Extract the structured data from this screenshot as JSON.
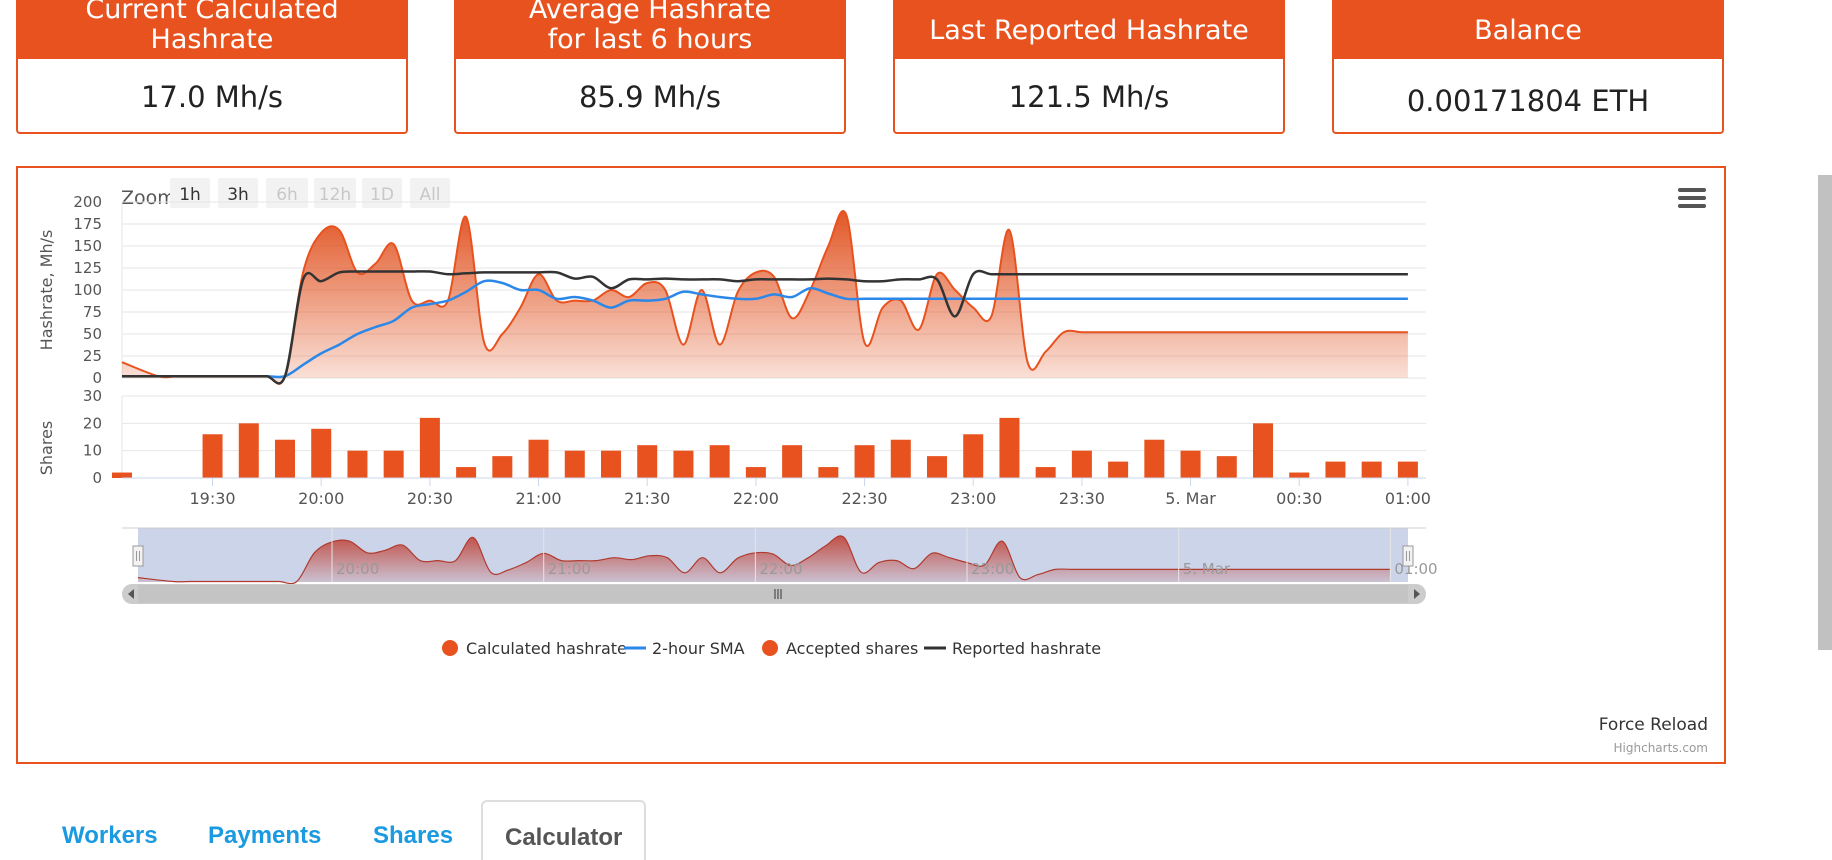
{
  "cards": [
    {
      "title_lines": [
        "Current Calculated",
        "Hashrate"
      ],
      "value": "17.0 Mh/s"
    },
    {
      "title_lines": [
        "Average Hashrate",
        "for last 6 hours"
      ],
      "value": "85.9 Mh/s"
    },
    {
      "title_lines": [
        "Last Reported Hashrate"
      ],
      "value": "121.5 Mh/s"
    },
    {
      "title_lines": [
        "Balance"
      ],
      "value": "0.00171804 ETH"
    }
  ],
  "chart_ui": {
    "zoom_label": "Zoom",
    "zoom_buttons": [
      {
        "label": "1h",
        "enabled": true
      },
      {
        "label": "3h",
        "enabled": true
      },
      {
        "label": "6h",
        "enabled": false
      },
      {
        "label": "12h",
        "enabled": false
      },
      {
        "label": "1D",
        "enabled": false
      },
      {
        "label": "All",
        "enabled": false
      }
    ],
    "force_reload": "Force Reload",
    "credits": "Highcharts.com"
  },
  "colors": {
    "accent": "#e8521f",
    "sma": "#2b88e8",
    "reported": "#333333",
    "tab_link": "#1a9ae0"
  },
  "chart_data": {
    "type": "line",
    "ylabel_top": "Hashrate, Mh/s",
    "ylabel_bottom": "Shares",
    "ylim_top": [
      0,
      200
    ],
    "yticks_top": [
      0,
      25,
      50,
      75,
      100,
      125,
      150,
      175,
      200
    ],
    "ylim_bottom": [
      0,
      30
    ],
    "yticks_bottom": [
      0,
      10,
      20,
      30
    ],
    "x_tick_labels": [
      "19:30",
      "20:00",
      "20:30",
      "21:00",
      "21:30",
      "22:00",
      "22:30",
      "23:00",
      "23:30",
      "5. Mar",
      "00:30",
      "01:00"
    ],
    "x_tick_minutes": [
      0,
      30,
      60,
      90,
      120,
      150,
      180,
      210,
      240,
      270,
      300,
      330
    ],
    "navigator_labels": [
      "20:00",
      "21:00",
      "22:00",
      "23:00",
      "5. Mar",
      "01:00"
    ],
    "navigator_minutes": [
      30,
      90,
      150,
      210,
      270,
      330
    ],
    "legend": [
      "Calculated hashrate",
      "2-hour SMA",
      "Accepted shares",
      "Reported hashrate"
    ],
    "x_minutes": [
      -25,
      -15,
      -10,
      -5,
      0,
      5,
      10,
      15,
      20,
      25,
      30,
      35,
      40,
      45,
      50,
      55,
      60,
      65,
      70,
      75,
      80,
      85,
      90,
      95,
      100,
      105,
      110,
      115,
      120,
      125,
      130,
      135,
      140,
      145,
      150,
      155,
      160,
      165,
      170,
      175,
      180,
      185,
      190,
      195,
      200,
      205,
      210,
      215,
      220,
      225,
      230,
      235,
      240,
      245,
      250,
      255,
      260,
      265,
      270,
      275,
      280,
      285,
      290,
      295,
      300,
      305,
      310,
      315,
      320,
      325,
      330,
      335
    ],
    "series": [
      {
        "name": "Calculated hashrate",
        "values": [
          18,
          2,
          2,
          2,
          2,
          2,
          2,
          2,
          2,
          120,
          165,
          168,
          120,
          130,
          152,
          88,
          88,
          88,
          183,
          40,
          50,
          80,
          118,
          88,
          88,
          88,
          100,
          92,
          108,
          100,
          38,
          100,
          38,
          98,
          120,
          115,
          68,
          100,
          150,
          185,
          40,
          80,
          88,
          55,
          118,
          100,
          80,
          70,
          168,
          18,
          30,
          52,
          52,
          52,
          52,
          52,
          52,
          52,
          52,
          52,
          52,
          52,
          52,
          52,
          52,
          52,
          52,
          52,
          52,
          52,
          52,
          52
        ]
      },
      {
        "name": "2-hour SMA",
        "values": [
          2,
          2,
          2,
          2,
          2,
          2,
          2,
          2,
          2,
          15,
          28,
          38,
          50,
          58,
          65,
          80,
          84,
          88,
          98,
          110,
          108,
          100,
          100,
          90,
          92,
          88,
          80,
          88,
          88,
          90,
          98,
          95,
          92,
          90,
          90,
          95,
          92,
          102,
          96,
          90,
          90,
          90,
          90,
          90,
          90,
          90,
          90,
          90,
          90,
          90,
          90,
          90,
          90,
          90,
          90,
          90,
          90,
          90,
          90,
          90,
          90,
          90,
          90,
          90,
          90,
          90,
          90,
          90,
          90,
          90,
          90,
          90
        ]
      },
      {
        "name": "Reported hashrate",
        "values": [
          2,
          2,
          2,
          2,
          2,
          2,
          2,
          2,
          2,
          112,
          110,
          120,
          121,
          121,
          121,
          121,
          121,
          118,
          119,
          120,
          120,
          120,
          120,
          120,
          113,
          115,
          102,
          112,
          112,
          113,
          112,
          112,
          112,
          110,
          112,
          112,
          112,
          112,
          113,
          112,
          110,
          110,
          112,
          112,
          112,
          70,
          118,
          118,
          118,
          118,
          118,
          118,
          118,
          118,
          118,
          118,
          118,
          118,
          118,
          118,
          118,
          118,
          118,
          118,
          118,
          118,
          118,
          118,
          118,
          118,
          118,
          118
        ]
      }
    ],
    "shares": {
      "name": "Accepted shares",
      "x_minutes": [
        -25,
        0,
        10,
        20,
        30,
        40,
        50,
        60,
        70,
        80,
        90,
        100,
        110,
        120,
        130,
        140,
        150,
        160,
        170,
        180,
        190,
        200,
        210,
        220,
        230,
        240,
        250,
        260,
        270,
        280,
        290,
        300,
        310,
        320,
        330
      ],
      "values": [
        2,
        16,
        20,
        14,
        18,
        10,
        10,
        22,
        4,
        8,
        14,
        10,
        10,
        12,
        10,
        12,
        4,
        12,
        4,
        12,
        14,
        8,
        16,
        22,
        4,
        10,
        6,
        14,
        10,
        8,
        20,
        2,
        6,
        6,
        6
      ]
    }
  },
  "tabs": [
    {
      "label": "Workers"
    },
    {
      "label": "Payments"
    },
    {
      "label": "Shares"
    },
    {
      "label": "Calculator"
    }
  ]
}
